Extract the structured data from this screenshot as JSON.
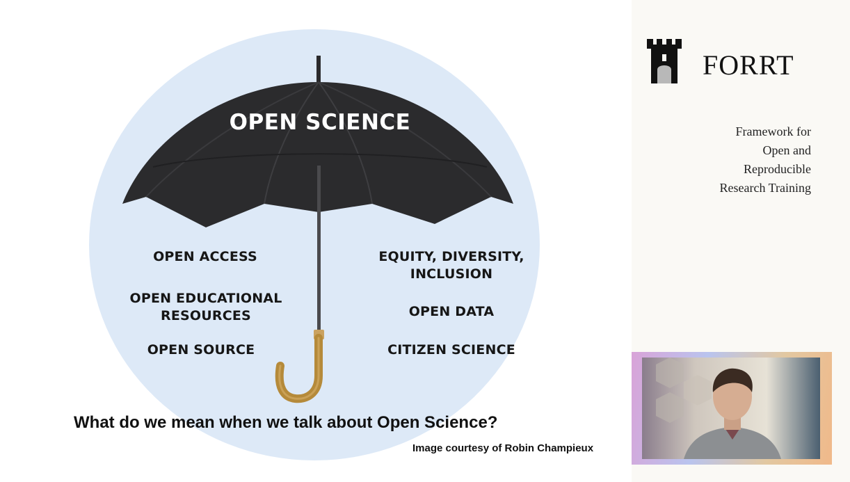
{
  "slide": {
    "canopy_title": "OPEN SCIENCE",
    "topics_left": [
      {
        "line1": "OPEN ACCESS",
        "line2": ""
      },
      {
        "line1": "OPEN EDUCATIONAL",
        "line2": "RESOURCES"
      },
      {
        "line1": "OPEN SOURCE",
        "line2": ""
      }
    ],
    "topics_right": [
      {
        "line1": "EQUITY, DIVERSITY,",
        "line2": "INCLUSION"
      },
      {
        "line1": "OPEN DATA",
        "line2": ""
      },
      {
        "line1": "CITIZEN SCIENCE",
        "line2": ""
      }
    ],
    "question": "What do we mean when we talk about Open Science?",
    "credit": "Image courtesy of Robin Champieux"
  },
  "sidebar": {
    "logo_text": "FORRT",
    "tagline": [
      "Framework for",
      "Open and",
      "Reproducible",
      "Research Training"
    ]
  },
  "colors": {
    "circle_bg": "#dde9f7",
    "canopy": "#2b2b2d",
    "handle": "#b58a3a",
    "sidebar_bg": "#faf9f5"
  },
  "icons": {
    "logo": "castle-tower-icon",
    "umbrella": "umbrella-illustration"
  }
}
